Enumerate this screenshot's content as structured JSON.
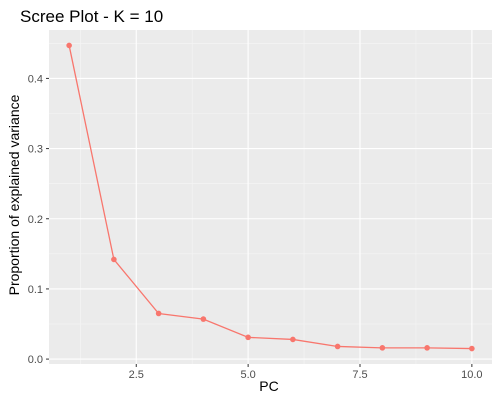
{
  "chart_data": {
    "type": "line",
    "title": "Scree Plot - K = 10",
    "xlabel": "PC",
    "ylabel": "Proportion of explained variance",
    "x": [
      1,
      2,
      3,
      4,
      5,
      6,
      7,
      8,
      9,
      10
    ],
    "series": [
      {
        "values": [
          0.447,
          0.142,
          0.065,
          0.057,
          0.031,
          0.028,
          0.018,
          0.016,
          0.016,
          0.015
        ]
      }
    ],
    "xlim": [
      0.55,
      10.45
    ],
    "ylim": [
      -0.007,
      0.469
    ],
    "x_ticks": [
      2.5,
      5.0,
      7.5,
      10.0
    ],
    "x_tick_labels": [
      "2.5",
      "5.0",
      "7.5",
      "10.0"
    ],
    "y_ticks": [
      0.0,
      0.1,
      0.2,
      0.3,
      0.4
    ],
    "y_tick_labels": [
      "0.0",
      "0.1",
      "0.2",
      "0.3",
      "0.4"
    ],
    "grid": true,
    "legend": "none",
    "colors": {
      "panel_background": "#ebebeb",
      "grid_major": "#ffffff",
      "grid_minor": "#f5f5f5",
      "series": "#f8766d",
      "tick_mark": "#333333"
    }
  }
}
